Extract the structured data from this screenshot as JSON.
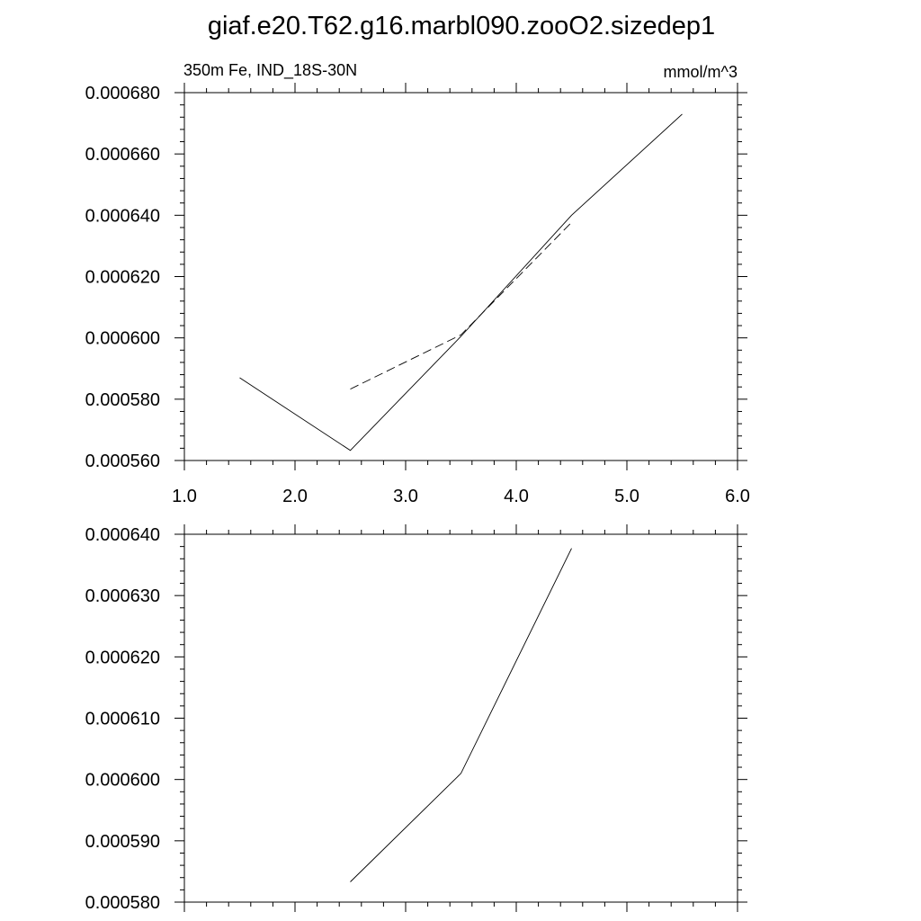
{
  "title": "giaf.e20.T62.g16.marbl090.zooO2.sizedep1",
  "chart_data": [
    {
      "type": "line",
      "left_label": "350m Fe, IND_18S-30N",
      "right_label": "mmol/m^3",
      "xlim": [
        1.0,
        6.0
      ],
      "x_ticks": [
        "1.0",
        "2.0",
        "3.0",
        "4.0",
        "5.0",
        "6.0"
      ],
      "ylim": [
        0.00056,
        0.00068
      ],
      "y_ticks": [
        "0.000560",
        "0.000580",
        "0.000600",
        "0.000620",
        "0.000640",
        "0.000660",
        "0.000680"
      ],
      "series": [
        {
          "style": "solid",
          "x": [
            1.5,
            2.5,
            3.5,
            4.5,
            5.5
          ],
          "y": [
            0.000587,
            0.0005633,
            0.0006005,
            0.00064,
            0.000673
          ]
        },
        {
          "style": "dashed",
          "x": [
            2.5,
            3.5,
            4.5
          ],
          "y": [
            0.0005833,
            0.000601,
            0.0006377
          ]
        }
      ]
    },
    {
      "type": "line",
      "xlim": [
        1.0,
        6.0
      ],
      "x_ticks": [],
      "ylim": [
        0.00058,
        0.00064
      ],
      "y_ticks": [
        "0.000580",
        "0.000590",
        "0.000600",
        "0.000610",
        "0.000620",
        "0.000630",
        "0.000640"
      ],
      "series": [
        {
          "style": "solid",
          "x": [
            2.5,
            3.5,
            4.5
          ],
          "y": [
            0.0005833,
            0.000601,
            0.0006377
          ]
        }
      ]
    }
  ]
}
